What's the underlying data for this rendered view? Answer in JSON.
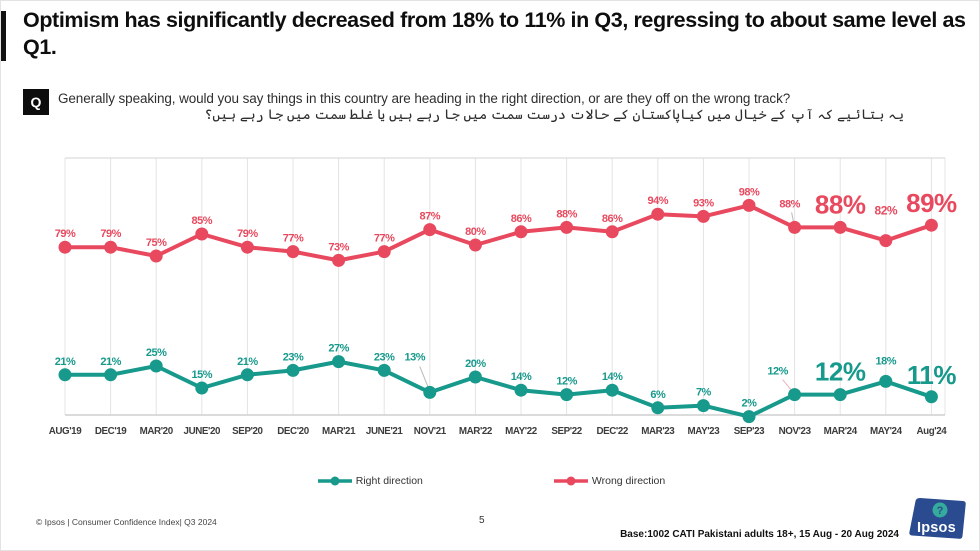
{
  "slide": {
    "title": "Optimism has significantly decreased from 18% to 11% in Q3, regressing to about same level as Q1.",
    "question_badge": "Q",
    "question_en": "Generally speaking, would you say things in this country are heading in the right direction, or are they off on the wrong track?",
    "question_ur": "یہ بتائیے کہ آپ کے خیال میں کیاپاکستان کے حالات درست سمت میں جا رہے ہیں یا غلط سمت میں جا رہے ہیں؟"
  },
  "chart_data": {
    "type": "line",
    "title": "Right direction vs Wrong direction over time (%)",
    "categories": [
      "AUG'19",
      "DEC'19",
      "MAR'20",
      "JUNE'20",
      "SEP'20",
      "DEC'20",
      "MAR'21",
      "JUNE'21",
      "NOV'21",
      "MAR'22",
      "MAY'22",
      "SEP'22",
      "DEC'22",
      "MAR'23",
      "MAY'23",
      "SEP'23",
      "NOV'23",
      "MAR'24",
      "MAY'24",
      "Aug'24"
    ],
    "series": [
      {
        "name": "Right direction",
        "color": "#17998C",
        "values": [
          21,
          21,
          25,
          15,
          21,
          23,
          27,
          23,
          13,
          20,
          14,
          12,
          14,
          6,
          7,
          2,
          12,
          12,
          18,
          11
        ]
      },
      {
        "name": "Wrong direction",
        "color": "#E8495E",
        "values": [
          79,
          79,
          75,
          85,
          79,
          77,
          73,
          77,
          87,
          80,
          86,
          88,
          86,
          94,
          93,
          98,
          88,
          88,
          82,
          89
        ]
      }
    ],
    "ylim": [
      0,
      100
    ],
    "grid": "vertical category gridlines",
    "legend_position": "bottom",
    "data_labels": "percent above each point",
    "emphasized_categories": [
      "MAR'24",
      "Aug'24"
    ]
  },
  "legend": {
    "items": [
      {
        "label": "Right direction",
        "color": "#17998C"
      },
      {
        "label": "Wrong direction",
        "color": "#E8495E"
      }
    ]
  },
  "footer": {
    "copyright": "© Ipsos | Consumer Confidence Index| Q3 2024",
    "page_number": "5",
    "base_note": "Base:1002 CATI Pakistani adults 18+, 15 Aug - 20 Aug 2024",
    "logo": "Ipsos"
  }
}
